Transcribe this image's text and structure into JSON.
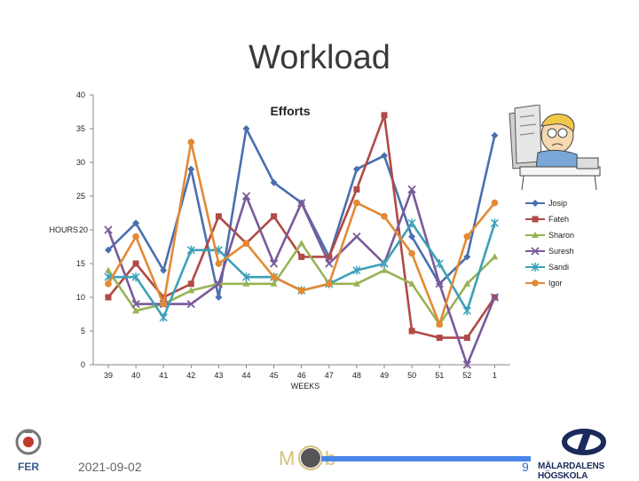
{
  "slide": {
    "title": "Workload",
    "date": "2021-09-02",
    "page_number": "9",
    "logo_right_text": "MÄLARDALENS HÖGSKOLA"
  },
  "chart_data": {
    "type": "line",
    "title": "Efforts",
    "xlabel": "WEEKS",
    "ylabel": "HOURS",
    "categories": [
      "39",
      "40",
      "41",
      "42",
      "43",
      "44",
      "45",
      "46",
      "47",
      "48",
      "49",
      "50",
      "51",
      "52",
      "1"
    ],
    "yticks": [
      0,
      5,
      10,
      15,
      20,
      25,
      30,
      35,
      40
    ],
    "ylim": [
      0,
      40
    ],
    "grid": false,
    "legend": "right",
    "series": [
      {
        "name": "Josip",
        "color": "#4a6fb0",
        "marker": "diamond",
        "values": [
          17,
          21,
          14,
          29,
          10,
          35,
          27,
          24,
          16,
          29,
          31,
          19,
          12,
          16,
          34
        ]
      },
      {
        "name": "Fateh",
        "color": "#b04a45",
        "marker": "square",
        "values": [
          10,
          15,
          10,
          12,
          22,
          18,
          22,
          16,
          16,
          26,
          37,
          5,
          4,
          4,
          10
        ]
      },
      {
        "name": "Sharon",
        "color": "#98b455",
        "marker": "triangle",
        "values": [
          14,
          8,
          9,
          11,
          12,
          12,
          12,
          18,
          12,
          12,
          14,
          12,
          6,
          12,
          16
        ]
      },
      {
        "name": "Suresh",
        "color": "#7a5a9a",
        "marker": "x",
        "values": [
          20,
          9,
          9,
          9,
          12,
          25,
          15,
          24,
          15,
          19,
          15,
          26,
          12,
          0,
          10
        ]
      },
      {
        "name": "Sandi",
        "color": "#3ea0b8",
        "marker": "star",
        "values": [
          13,
          13,
          7,
          17,
          17,
          13,
          13,
          11,
          12,
          14,
          15,
          21,
          15,
          8,
          21
        ]
      },
      {
        "name": "Igor",
        "color": "#e38a35",
        "marker": "circle",
        "values": [
          12,
          19,
          9,
          33,
          15,
          18,
          13,
          11,
          12,
          24,
          22,
          16.5,
          6,
          19,
          24
        ]
      }
    ]
  }
}
